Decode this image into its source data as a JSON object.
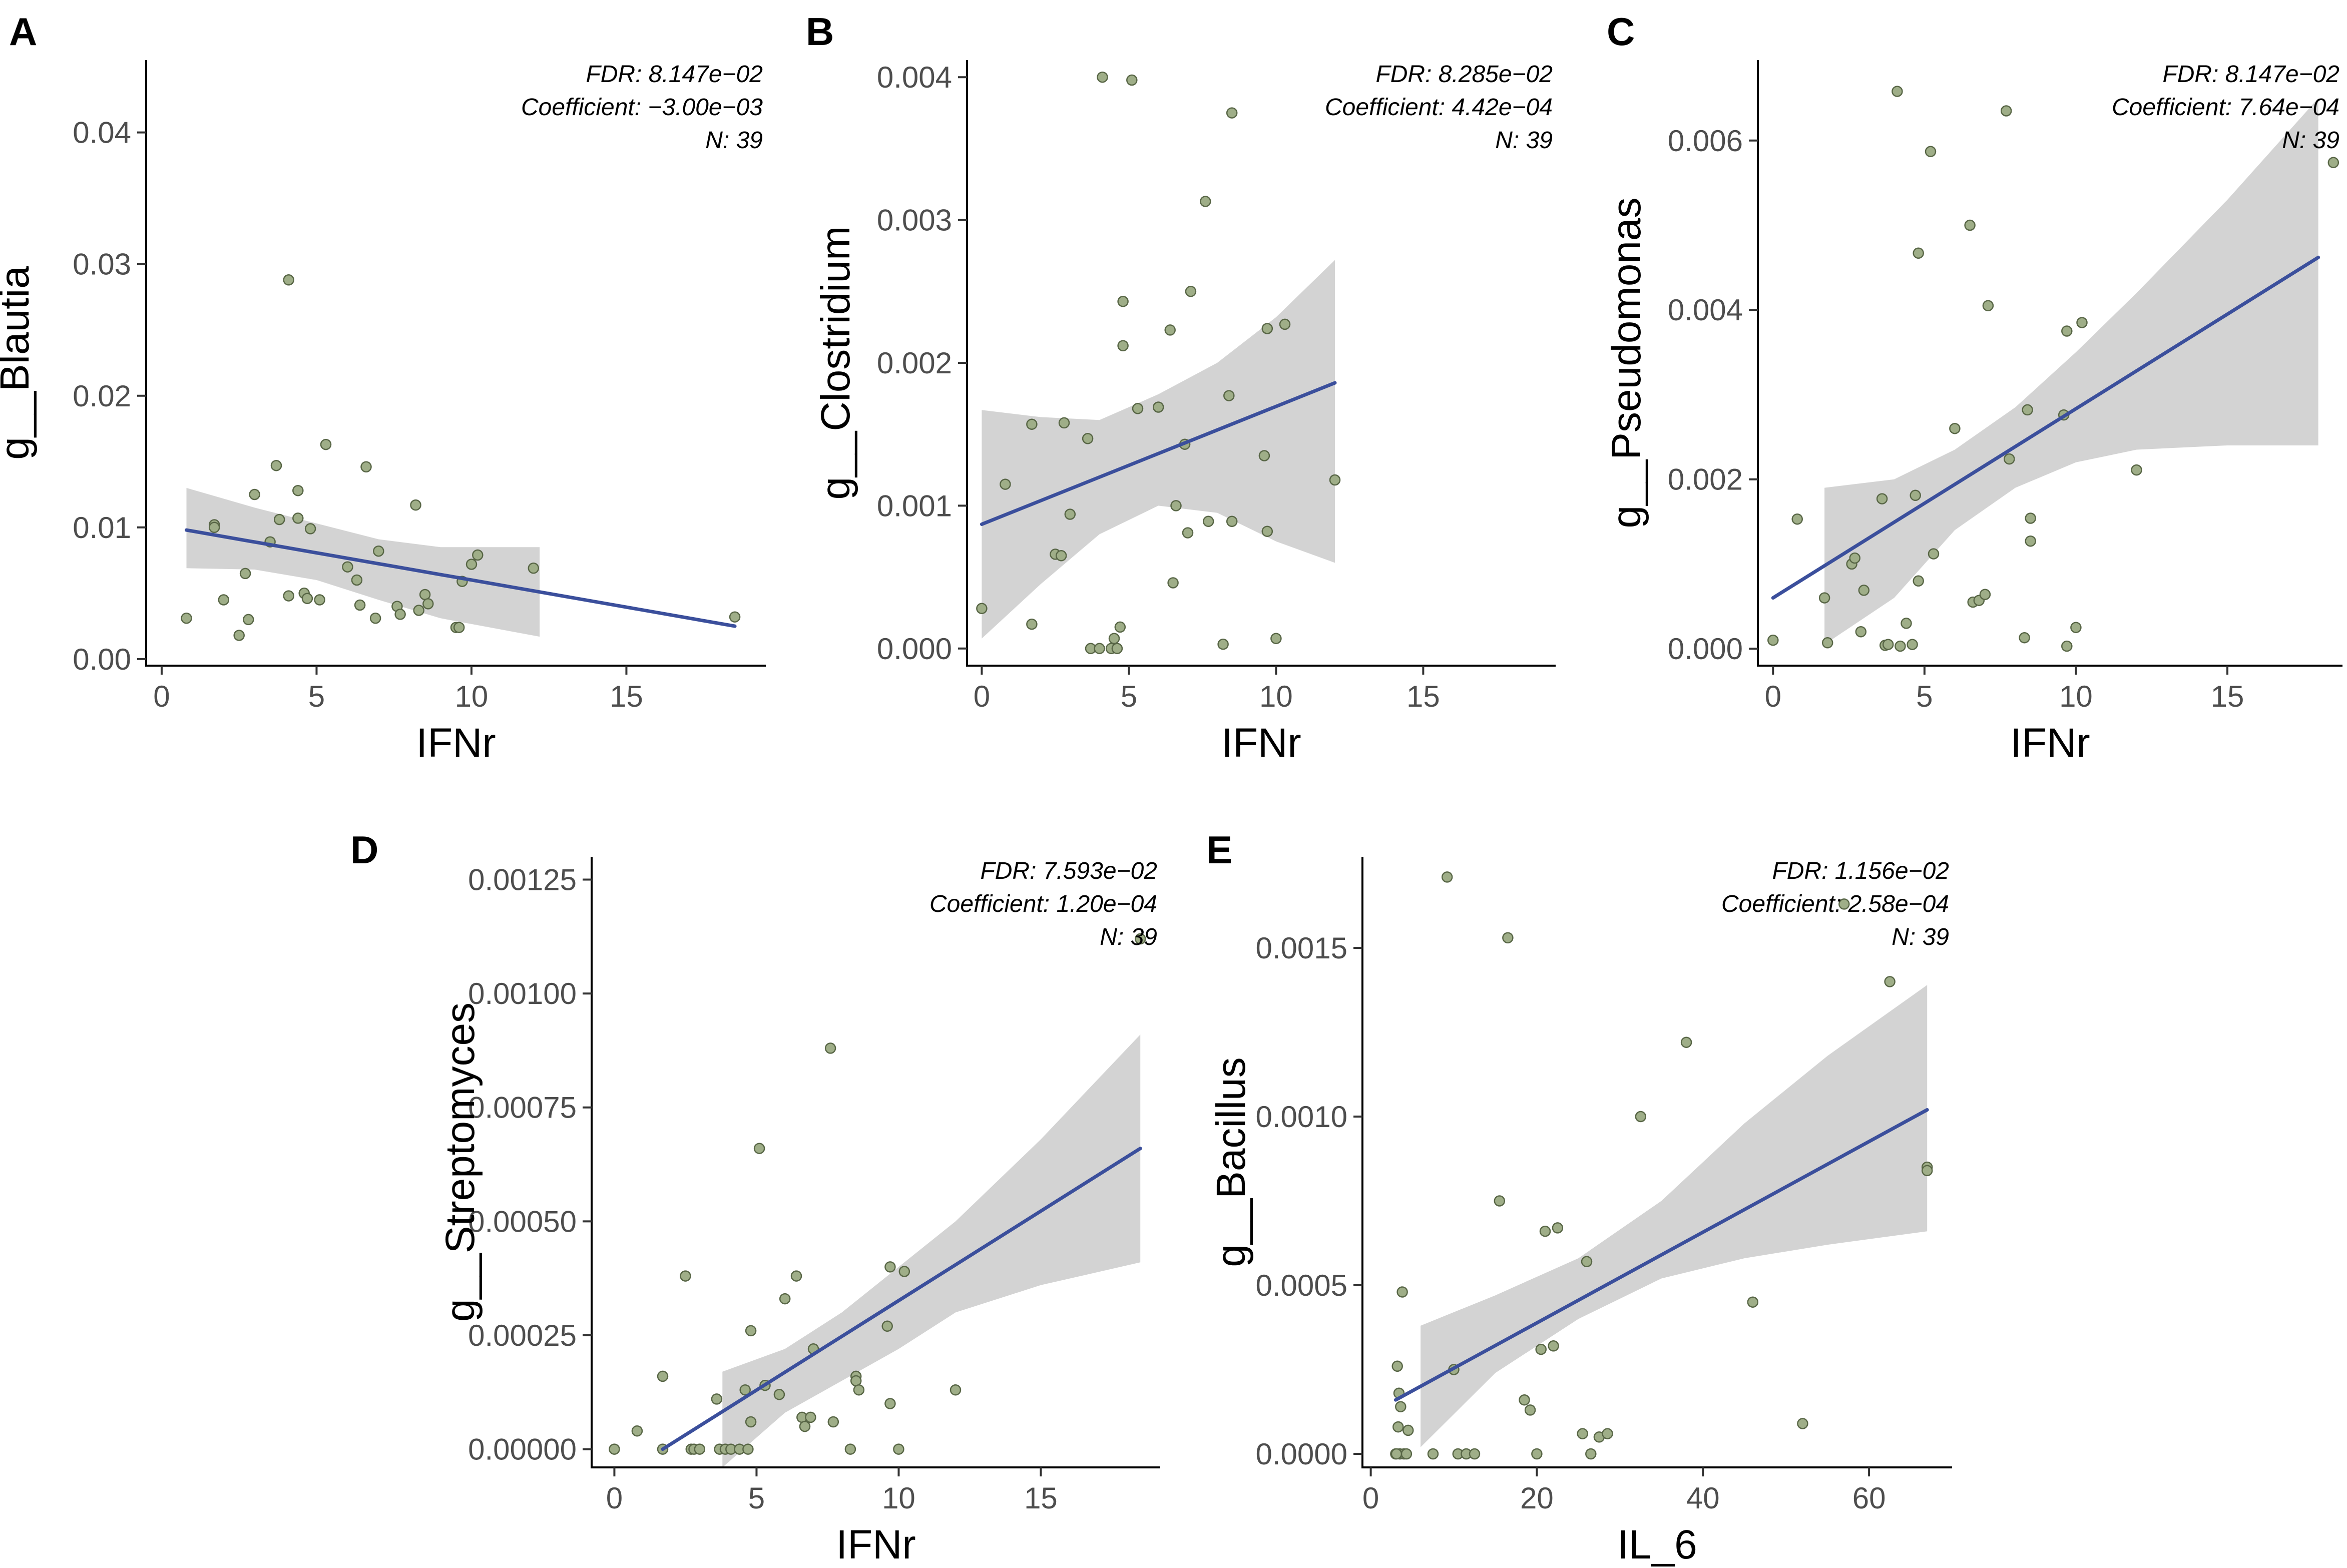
{
  "colors": {
    "point_fill": "#9fae88",
    "point_stroke": "#586646",
    "regression_line": "#3b4f9c",
    "confidence_band": "#d3d3d3"
  },
  "chart_data": [
    {
      "panel": "A",
      "type": "scatter",
      "xlabel": "IFNr",
      "ylabel": "g__Blautia",
      "xlim": [
        -0.5,
        19.5
      ],
      "ylim": [
        -0.0005,
        0.0455
      ],
      "xticks": [
        0,
        5,
        10,
        15
      ],
      "xtick_labels": [
        "0",
        "5",
        "10",
        "15"
      ],
      "yticks": [
        0,
        0.01,
        0.02,
        0.03,
        0.04
      ],
      "ytick_labels": [
        "0.00",
        "0.01",
        "0.02",
        "0.03",
        "0.04"
      ],
      "annotation": [
        "FDR: 8.147e−02",
        "Coefficient: −3.00e−03",
        "N: 39"
      ],
      "points": [
        [
          0.8,
          0.0031
        ],
        [
          1.7,
          0.0102
        ],
        [
          1.7,
          0.01
        ],
        [
          2.5,
          0.0018
        ],
        [
          2.7,
          0.0065
        ],
        [
          2.8,
          0.003
        ],
        [
          3.0,
          0.0125
        ],
        [
          3.5,
          0.0089
        ],
        [
          3.7,
          0.0147
        ],
        [
          3.8,
          0.0106
        ],
        [
          4.1,
          0.0288
        ],
        [
          4.1,
          0.0048
        ],
        [
          4.4,
          0.0128
        ],
        [
          4.4,
          0.0107
        ],
        [
          4.6,
          0.005
        ],
        [
          4.7,
          0.0046
        ],
        [
          4.8,
          0.0099
        ],
        [
          5.1,
          0.0045
        ],
        [
          5.3,
          0.0163
        ],
        [
          6.0,
          0.007
        ],
        [
          6.4,
          0.0041
        ],
        [
          6.6,
          0.0146
        ],
        [
          6.9,
          0.0031
        ],
        [
          7.0,
          0.0082
        ],
        [
          7.6,
          0.004
        ],
        [
          7.7,
          0.0034
        ],
        [
          8.2,
          0.0117
        ],
        [
          8.3,
          0.0037
        ],
        [
          8.5,
          0.0049
        ],
        [
          8.6,
          0.0042
        ],
        [
          9.5,
          0.0024
        ],
        [
          9.6,
          0.0024
        ],
        [
          9.7,
          0.0059
        ],
        [
          10.0,
          0.0072
        ],
        [
          10.2,
          0.0079
        ],
        [
          12.0,
          0.0069
        ],
        [
          18.5,
          0.0032
        ],
        [
          2.0,
          0.0045
        ],
        [
          6.3,
          0.006
        ]
      ],
      "fit": {
        "x": [
          0.8,
          18.5
        ],
        "y": [
          0.0098,
          0.0025
        ]
      },
      "band": {
        "x": [
          0.8,
          3,
          5,
          7,
          9,
          12.2
        ],
        "lower": [
          0.0069,
          0.0068,
          0.006,
          0.0045,
          0.0031,
          0.0017
        ],
        "upper": [
          0.013,
          0.0115,
          0.0103,
          0.0091,
          0.0085,
          0.0085
        ]
      }
    },
    {
      "panel": "B",
      "type": "scatter",
      "xlabel": "IFNr",
      "ylabel": "g__Clostridium",
      "xlim": [
        -0.5,
        19.5
      ],
      "ylim": [
        -0.00012,
        0.00412
      ],
      "xticks": [
        0,
        5,
        10,
        15
      ],
      "xtick_labels": [
        "0",
        "5",
        "10",
        "15"
      ],
      "yticks": [
        0,
        0.001,
        0.002,
        0.003,
        0.004
      ],
      "ytick_labels": [
        "0.000",
        "0.001",
        "0.002",
        "0.003",
        "0.004"
      ],
      "annotation": [
        "FDR: 8.285e−02",
        "Coefficient: 4.42e−04",
        "N: 39"
      ],
      "points": [
        [
          0.0,
          0.00028
        ],
        [
          0.8,
          0.00115
        ],
        [
          1.7,
          0.00157
        ],
        [
          1.7,
          0.00017
        ],
        [
          2.5,
          0.00066
        ],
        [
          2.7,
          0.00065
        ],
        [
          2.8,
          0.00158
        ],
        [
          3.0,
          0.00094
        ],
        [
          3.6,
          0.00147
        ],
        [
          3.7,
          0.0
        ],
        [
          4.0,
          0.0
        ],
        [
          4.1,
          0.004
        ],
        [
          4.4,
          0.0
        ],
        [
          4.5,
          7e-05
        ],
        [
          4.6,
          0.0
        ],
        [
          4.7,
          0.00015
        ],
        [
          4.8,
          0.00243
        ],
        [
          4.8,
          0.00212
        ],
        [
          5.1,
          0.00398
        ],
        [
          5.3,
          0.00168
        ],
        [
          6.0,
          0.00169
        ],
        [
          6.4,
          0.00223
        ],
        [
          6.6,
          0.001
        ],
        [
          6.9,
          0.00143
        ],
        [
          7.0,
          0.00081
        ],
        [
          7.1,
          0.0025
        ],
        [
          7.6,
          0.00313
        ],
        [
          7.7,
          0.00089
        ],
        [
          8.2,
          3e-05
        ],
        [
          8.4,
          0.00177
        ],
        [
          8.5,
          0.00375
        ],
        [
          8.5,
          0.00089
        ],
        [
          9.6,
          0.00135
        ],
        [
          9.7,
          0.00224
        ],
        [
          9.7,
          0.00082
        ],
        [
          10.0,
          7e-05
        ],
        [
          10.3,
          0.00227
        ],
        [
          12.0,
          0.00118
        ],
        [
          6.5,
          0.00046
        ]
      ],
      "fit": {
        "x": [
          0.0,
          12.0
        ],
        "y": [
          0.00087,
          0.00186
        ]
      },
      "band": {
        "x": [
          0,
          2,
          4,
          6,
          8,
          10,
          12
        ],
        "lower": [
          7e-05,
          0.00045,
          0.0008,
          0.001,
          0.00095,
          0.00075,
          0.0006
        ],
        "upper": [
          0.00167,
          0.00162,
          0.0016,
          0.00178,
          0.002,
          0.00232,
          0.00272
        ]
      }
    },
    {
      "panel": "C",
      "type": "scatter",
      "xlabel": "IFNr",
      "ylabel": "g__Pseudomonas",
      "xlim": [
        -0.5,
        18.8
      ],
      "ylim": [
        -0.0002,
        0.00695
      ],
      "xticks": [
        0,
        5,
        10,
        15
      ],
      "xtick_labels": [
        "0",
        "5",
        "10",
        "15"
      ],
      "yticks": [
        0,
        0.002,
        0.004,
        0.006
      ],
      "ytick_labels": [
        "0.000",
        "0.002",
        "0.004",
        "0.006"
      ],
      "annotation": [
        "FDR: 8.147e−02",
        "Coefficient: 7.64e−04",
        "N: 39"
      ],
      "points": [
        [
          0.0,
          0.0001
        ],
        [
          0.8,
          0.00153
        ],
        [
          1.7,
          0.0006
        ],
        [
          1.8,
          7e-05
        ],
        [
          2.6,
          0.001
        ],
        [
          2.7,
          0.00107
        ],
        [
          2.9,
          0.0002
        ],
        [
          3.0,
          0.00069
        ],
        [
          3.6,
          0.00177
        ],
        [
          3.7,
          4e-05
        ],
        [
          3.8,
          5e-05
        ],
        [
          4.1,
          0.00658
        ],
        [
          4.2,
          3e-05
        ],
        [
          4.4,
          0.0003
        ],
        [
          4.6,
          5e-05
        ],
        [
          4.7,
          0.00181
        ],
        [
          4.8,
          0.00467
        ],
        [
          4.8,
          0.0008
        ],
        [
          5.2,
          0.00587
        ],
        [
          5.3,
          0.00112
        ],
        [
          6.0,
          0.0026
        ],
        [
          6.5,
          0.005
        ],
        [
          6.6,
          0.00055
        ],
        [
          6.8,
          0.00057
        ],
        [
          7.0,
          0.00064
        ],
        [
          7.1,
          0.00405
        ],
        [
          7.7,
          0.00635
        ],
        [
          7.8,
          0.00224
        ],
        [
          8.3,
          0.00013
        ],
        [
          8.4,
          0.00282
        ],
        [
          8.5,
          0.00154
        ],
        [
          8.5,
          0.00127
        ],
        [
          9.6,
          0.00276
        ],
        [
          9.7,
          0.00375
        ],
        [
          9.7,
          3e-05
        ],
        [
          10.0,
          0.00025
        ],
        [
          10.2,
          0.00385
        ],
        [
          12.0,
          0.00211
        ],
        [
          18.5,
          0.00574
        ]
      ],
      "fit": {
        "x": [
          0.0,
          18.0
        ],
        "y": [
          0.0006,
          0.00462
        ]
      },
      "band": {
        "x": [
          1.7,
          4,
          6,
          8,
          10,
          12,
          15,
          18
        ],
        "lower": [
          5e-05,
          0.0006,
          0.0014,
          0.0019,
          0.0022,
          0.00235,
          0.0024,
          0.0024
        ],
        "upper": [
          0.0019,
          0.002,
          0.00235,
          0.00285,
          0.0035,
          0.0042,
          0.0053,
          0.0065
        ]
      }
    },
    {
      "panel": "D",
      "type": "scatter",
      "xlabel": "IFNr",
      "ylabel": "g__Streptomyces",
      "xlim": [
        -0.8,
        19.2
      ],
      "ylim": [
        -4e-05,
        0.0013
      ],
      "xticks": [
        0,
        5,
        10,
        15
      ],
      "xtick_labels": [
        "0",
        "5",
        "10",
        "15"
      ],
      "yticks": [
        0,
        0.00025,
        0.0005,
        0.00075,
        0.001,
        0.00125
      ],
      "ytick_labels": [
        "0.00000",
        "0.00025",
        "0.00050",
        "0.00075",
        "0.00100",
        "0.00125"
      ],
      "annotation": [
        "FDR: 7.593e−02",
        "Coefficient: 1.20e−04",
        "N: 39"
      ],
      "points": [
        [
          0.0,
          0.0
        ],
        [
          0.8,
          4e-05
        ],
        [
          1.7,
          0.00016
        ],
        [
          1.7,
          0.0
        ],
        [
          2.5,
          0.00038
        ],
        [
          2.7,
          0.0
        ],
        [
          2.8,
          0.0
        ],
        [
          3.0,
          0.0
        ],
        [
          3.6,
          0.00011
        ],
        [
          3.7,
          0.0
        ],
        [
          3.9,
          0.0
        ],
        [
          4.1,
          0.0
        ],
        [
          4.4,
          0.0
        ],
        [
          4.6,
          0.00013
        ],
        [
          4.7,
          0.0
        ],
        [
          4.8,
          6e-05
        ],
        [
          4.8,
          0.00026
        ],
        [
          5.1,
          0.00066
        ],
        [
          5.3,
          0.00014
        ],
        [
          6.0,
          0.00033
        ],
        [
          6.4,
          0.00038
        ],
        [
          6.6,
          7e-05
        ],
        [
          6.9,
          7e-05
        ],
        [
          7.0,
          0.00022
        ],
        [
          7.6,
          0.00088
        ],
        [
          7.7,
          6e-05
        ],
        [
          8.3,
          0.0
        ],
        [
          8.5,
          0.00016
        ],
        [
          8.5,
          0.00015
        ],
        [
          8.6,
          0.00013
        ],
        [
          9.6,
          0.00027
        ],
        [
          9.7,
          0.0001
        ],
        [
          9.7,
          0.0004
        ],
        [
          10.0,
          0.0
        ],
        [
          10.2,
          0.00039
        ],
        [
          12.0,
          0.00013
        ],
        [
          18.5,
          0.00112
        ],
        [
          5.8,
          0.00012
        ],
        [
          6.7,
          5e-05
        ]
      ],
      "fit": {
        "x": [
          1.7,
          18.5
        ],
        "y": [
          0.0,
          0.00066
        ]
      },
      "band": {
        "x": [
          3.8,
          6,
          8,
          10,
          12,
          15,
          18.5
        ],
        "lower": [
          -4e-05,
          8e-05,
          0.00015,
          0.00022,
          0.0003,
          0.00036,
          0.00041
        ],
        "upper": [
          0.00017,
          0.00022,
          0.0003,
          0.0004,
          0.0005,
          0.00068,
          0.00091
        ]
      }
    },
    {
      "panel": "E",
      "type": "scatter",
      "xlabel": "IL_6",
      "ylabel": "g__Bacillus",
      "xlim": [
        -1,
        70
      ],
      "ylim": [
        -4e-05,
        0.00177
      ],
      "xticks": [
        0,
        20,
        40,
        60
      ],
      "xtick_labels": [
        "0",
        "20",
        "40",
        "60"
      ],
      "yticks": [
        0,
        0.0005,
        0.001,
        0.0015
      ],
      "ytick_labels": [
        "0.0000",
        "0.0005",
        "0.0010",
        "0.0015"
      ],
      "annotation": [
        "FDR: 1.156e−02",
        "Coefficient: 2.58e−04",
        "N: 39"
      ],
      "points": [
        [
          3.0,
          0.0
        ],
        [
          3.2,
          0.00026
        ],
        [
          3.3,
          8e-05
        ],
        [
          3.4,
          0.00018
        ],
        [
          3.5,
          0.0
        ],
        [
          3.6,
          0.00014
        ],
        [
          3.8,
          0.00048
        ],
        [
          4.0,
          0.0
        ],
        [
          4.3,
          0.0
        ],
        [
          4.5,
          7e-05
        ],
        [
          7.5,
          0.0
        ],
        [
          9.2,
          0.00171
        ],
        [
          10.0,
          0.00025
        ],
        [
          10.5,
          0.0
        ],
        [
          11.5,
          0.0
        ],
        [
          12.5,
          0.0
        ],
        [
          15.5,
          0.00075
        ],
        [
          16.5,
          0.00153
        ],
        [
          18.5,
          0.00016
        ],
        [
          19.2,
          0.00013
        ],
        [
          20.0,
          0.0
        ],
        [
          20.5,
          0.00031
        ],
        [
          21.0,
          0.00066
        ],
        [
          22.0,
          0.00032
        ],
        [
          22.5,
          0.00067
        ],
        [
          25.5,
          6e-05
        ],
        [
          26.0,
          0.00057
        ],
        [
          26.5,
          0.0
        ],
        [
          27.5,
          5e-05
        ],
        [
          28.5,
          6e-05
        ],
        [
          32.5,
          0.001
        ],
        [
          38.0,
          0.00122
        ],
        [
          46.0,
          0.00045
        ],
        [
          52.0,
          9e-05
        ],
        [
          57.0,
          0.00163
        ],
        [
          62.5,
          0.0014
        ],
        [
          67.0,
          0.00085
        ],
        [
          67.0,
          0.00084
        ],
        [
          3.1,
          0.0
        ]
      ],
      "fit": {
        "x": [
          3.0,
          67.0
        ],
        "y": [
          0.00016,
          0.00102
        ]
      },
      "band": {
        "x": [
          6,
          15,
          25,
          35,
          45,
          55,
          67
        ],
        "lower": [
          2e-05,
          0.00024,
          0.0004,
          0.00052,
          0.00058,
          0.00062,
          0.00066
        ],
        "upper": [
          0.00038,
          0.00047,
          0.00058,
          0.00075,
          0.00098,
          0.00118,
          0.00139
        ]
      }
    }
  ]
}
